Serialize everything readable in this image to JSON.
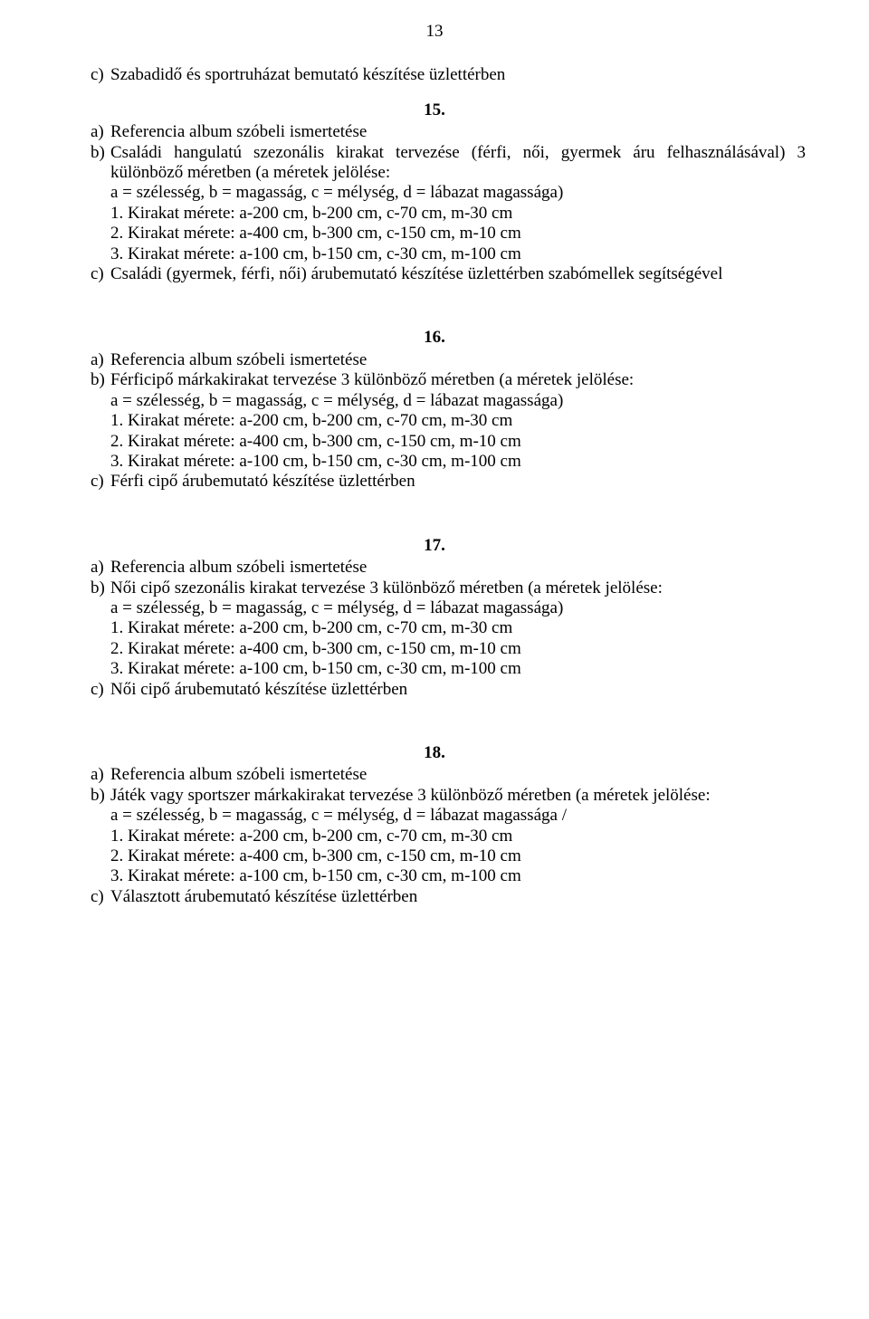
{
  "page_number": "13",
  "intro_c": {
    "label": "c)",
    "text": "Szabadidő és sportruházat bemutató készítése üzlettérben"
  },
  "tasks": [
    {
      "num": "15.",
      "a": {
        "label": "a)",
        "text": "Referencia album szóbeli ismertetése"
      },
      "b": {
        "label": "b)",
        "text": "Családi hangulatú szezonális kirakat tervezése (férfi, női, gyermek áru felhasználásával) 3 különböző méretben (a méretek jelölése:",
        "justify": true
      },
      "legend": "a = szélesség, b = magasság, c = mélység, d = lábazat magassága)",
      "sizes": [
        "1. Kirakat mérete: a-200 cm, b-200 cm, c-70 cm, m-30 cm",
        "2. Kirakat mérete: a-400 cm, b-300 cm, c-150 cm, m-10 cm",
        "3. Kirakat mérete: a-100 cm, b-150 cm, c-30 cm, m-100 cm"
      ],
      "c": {
        "label": "c)",
        "text": "Családi (gyermek, férfi, női) árubemutató készítése üzlettérben szabómellek segítségével",
        "justify": true
      }
    },
    {
      "num": "16.",
      "a": {
        "label": "a)",
        "text": "Referencia album szóbeli ismertetése"
      },
      "b": {
        "label": "b)",
        "text": "Férficipő márkakirakat tervezése 3 különböző méretben (a méretek jelölése:",
        "justify": false
      },
      "legend": "a = szélesség, b = magasság, c = mélység, d = lábazat magassága)",
      "sizes": [
        "1. Kirakat mérete: a-200 cm, b-200 cm, c-70 cm, m-30 cm",
        "2. Kirakat mérete: a-400 cm, b-300 cm, c-150 cm, m-10 cm",
        "3. Kirakat mérete: a-100 cm, b-150 cm, c-30 cm, m-100 cm"
      ],
      "c": {
        "label": "c)",
        "text": "Férfi cipő árubemutató készítése üzlettérben",
        "justify": false
      }
    },
    {
      "num": "17.",
      "a": {
        "label": "a)",
        "text": "Referencia album szóbeli ismertetése"
      },
      "b": {
        "label": "b)",
        "text": "Női cipő szezonális kirakat tervezése 3 különböző méretben (a méretek jelölése:",
        "justify": false
      },
      "legend": "a = szélesség, b = magasság, c = mélység, d = lábazat magassága)",
      "sizes": [
        "1. Kirakat mérete: a-200 cm, b-200 cm, c-70 cm, m-30 cm",
        "2. Kirakat mérete: a-400 cm, b-300 cm, c-150 cm, m-10 cm",
        "3. Kirakat mérete: a-100 cm, b-150 cm, c-30 cm, m-100 cm"
      ],
      "c": {
        "label": "c)",
        "text": "Női cipő árubemutató készítése üzlettérben",
        "justify": false
      }
    },
    {
      "num": "18.",
      "a": {
        "label": "a)",
        "text": "Referencia album szóbeli ismertetése"
      },
      "b": {
        "label": "b)",
        "text": "Játék vagy sportszer márkakirakat tervezése 3 különböző méretben (a méretek jelölése:",
        "justify": true
      },
      "legend": "a = szélesség, b = magasság, c = mélység, d = lábazat magassága /",
      "sizes": [
        "1. Kirakat mérete: a-200 cm, b-200 cm, c-70 cm, m-30 cm",
        "2. Kirakat mérete: a-400 cm, b-300 cm, c-150 cm, m-10 cm",
        "3. Kirakat mérete: a-100 cm, b-150 cm, c-30 cm, m-100 cm"
      ],
      "c": {
        "label": "c)",
        "text": "Választott árubemutató készítése üzlettérben",
        "justify": false
      }
    }
  ]
}
